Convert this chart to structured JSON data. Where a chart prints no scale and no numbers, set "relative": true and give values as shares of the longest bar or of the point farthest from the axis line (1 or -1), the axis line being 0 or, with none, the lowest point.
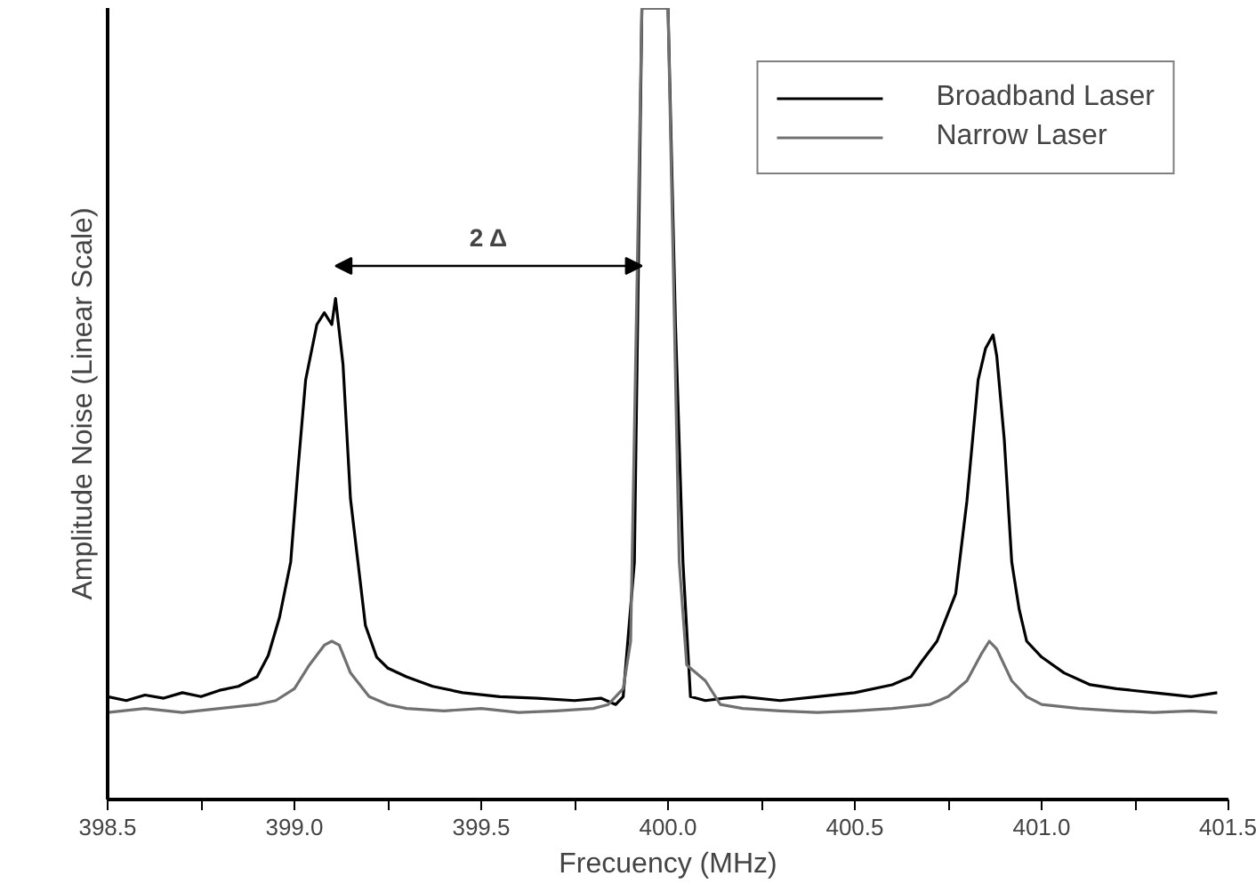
{
  "chart_data": {
    "type": "line",
    "relative": true,
    "xlabel": "Frecuency (MHz)",
    "ylabel": "Amplitude Noise (Linear Scale)",
    "xlim": [
      398.5,
      401.5
    ],
    "xticks": [
      398.5,
      {
        "value": 398.75,
        "label": null
      },
      {
        "value": 399,
        "label": "399.0"
      },
      {
        "value": 399.25,
        "label": null
      },
      399.5,
      {
        "value": 399.75,
        "label": null
      },
      {
        "value": 400,
        "label": "400.0"
      },
      {
        "value": 400.25,
        "label": null
      },
      400.5,
      {
        "value": 400.75,
        "label": null
      },
      {
        "value": 401,
        "label": "401.0"
      },
      {
        "value": 401.25,
        "label": null
      },
      401.5
    ],
    "legend": "top right",
    "grid": false,
    "line_style": "solid",
    "marker": "none",
    "annotations": [
      "2 Δ"
    ],
    "series": [
      {
        "name": "Broadband Laser",
        "color": "#000000",
        "x": [
          398.5,
          398.55,
          398.6,
          398.65,
          398.7,
          398.75,
          398.8,
          398.85,
          398.9,
          398.93,
          398.96,
          398.99,
          399.01,
          399.03,
          399.06,
          399.08,
          399.1,
          399.11,
          399.13,
          399.15,
          399.17,
          399.19,
          399.22,
          399.25,
          399.3,
          399.37,
          399.45,
          399.55,
          399.65,
          399.75,
          399.82,
          399.86,
          399.88,
          399.91,
          399.93,
          399.965,
          400.0,
          400.02,
          400.04,
          400.06,
          400.1,
          400.15,
          400.2,
          400.3,
          400.4,
          400.5,
          400.6,
          400.65,
          400.68,
          400.72,
          400.77,
          400.8,
          400.83,
          400.85,
          400.87,
          400.88,
          400.9,
          400.92,
          400.94,
          400.96,
          401.0,
          401.06,
          401.13,
          401.2,
          401.3,
          401.4,
          401.47
        ],
        "values": [
          0.13,
          0.125,
          0.132,
          0.128,
          0.135,
          0.13,
          0.138,
          0.143,
          0.155,
          0.182,
          0.23,
          0.3,
          0.42,
          0.53,
          0.6,
          0.615,
          0.6,
          0.633,
          0.55,
          0.38,
          0.3,
          0.22,
          0.18,
          0.166,
          0.155,
          0.143,
          0.135,
          0.13,
          0.128,
          0.125,
          0.128,
          0.12,
          0.13,
          0.3,
          1.0,
          1.0,
          1.0,
          0.6,
          0.3,
          0.13,
          0.125,
          0.128,
          0.13,
          0.125,
          0.13,
          0.135,
          0.145,
          0.155,
          0.175,
          0.2,
          0.26,
          0.377,
          0.53,
          0.57,
          0.587,
          0.56,
          0.455,
          0.3,
          0.24,
          0.2,
          0.18,
          0.16,
          0.145,
          0.14,
          0.135,
          0.13,
          0.135
        ]
      },
      {
        "name": "Narrow Laser",
        "color": "#707070",
        "x": [
          398.5,
          398.6,
          398.7,
          398.8,
          398.9,
          398.95,
          399.0,
          399.04,
          399.08,
          399.1,
          399.12,
          399.15,
          399.2,
          399.25,
          399.3,
          399.4,
          399.5,
          399.6,
          399.7,
          399.8,
          399.84,
          399.88,
          399.9,
          399.93,
          399.965,
          400.0,
          400.03,
          400.05,
          400.1,
          400.14,
          400.2,
          400.3,
          400.4,
          400.5,
          400.6,
          400.7,
          400.75,
          400.8,
          400.84,
          400.86,
          400.88,
          400.92,
          400.96,
          401.0,
          401.1,
          401.2,
          401.3,
          401.4,
          401.47
        ],
        "values": [
          0.11,
          0.115,
          0.11,
          0.115,
          0.12,
          0.125,
          0.14,
          0.17,
          0.195,
          0.2,
          0.195,
          0.16,
          0.13,
          0.12,
          0.115,
          0.112,
          0.115,
          0.11,
          0.112,
          0.115,
          0.12,
          0.14,
          0.2,
          1.0,
          1.0,
          1.0,
          0.3,
          0.17,
          0.15,
          0.12,
          0.115,
          0.112,
          0.11,
          0.112,
          0.115,
          0.12,
          0.13,
          0.15,
          0.185,
          0.2,
          0.19,
          0.15,
          0.13,
          0.12,
          0.115,
          0.112,
          0.11,
          0.112,
          0.11
        ]
      }
    ]
  }
}
